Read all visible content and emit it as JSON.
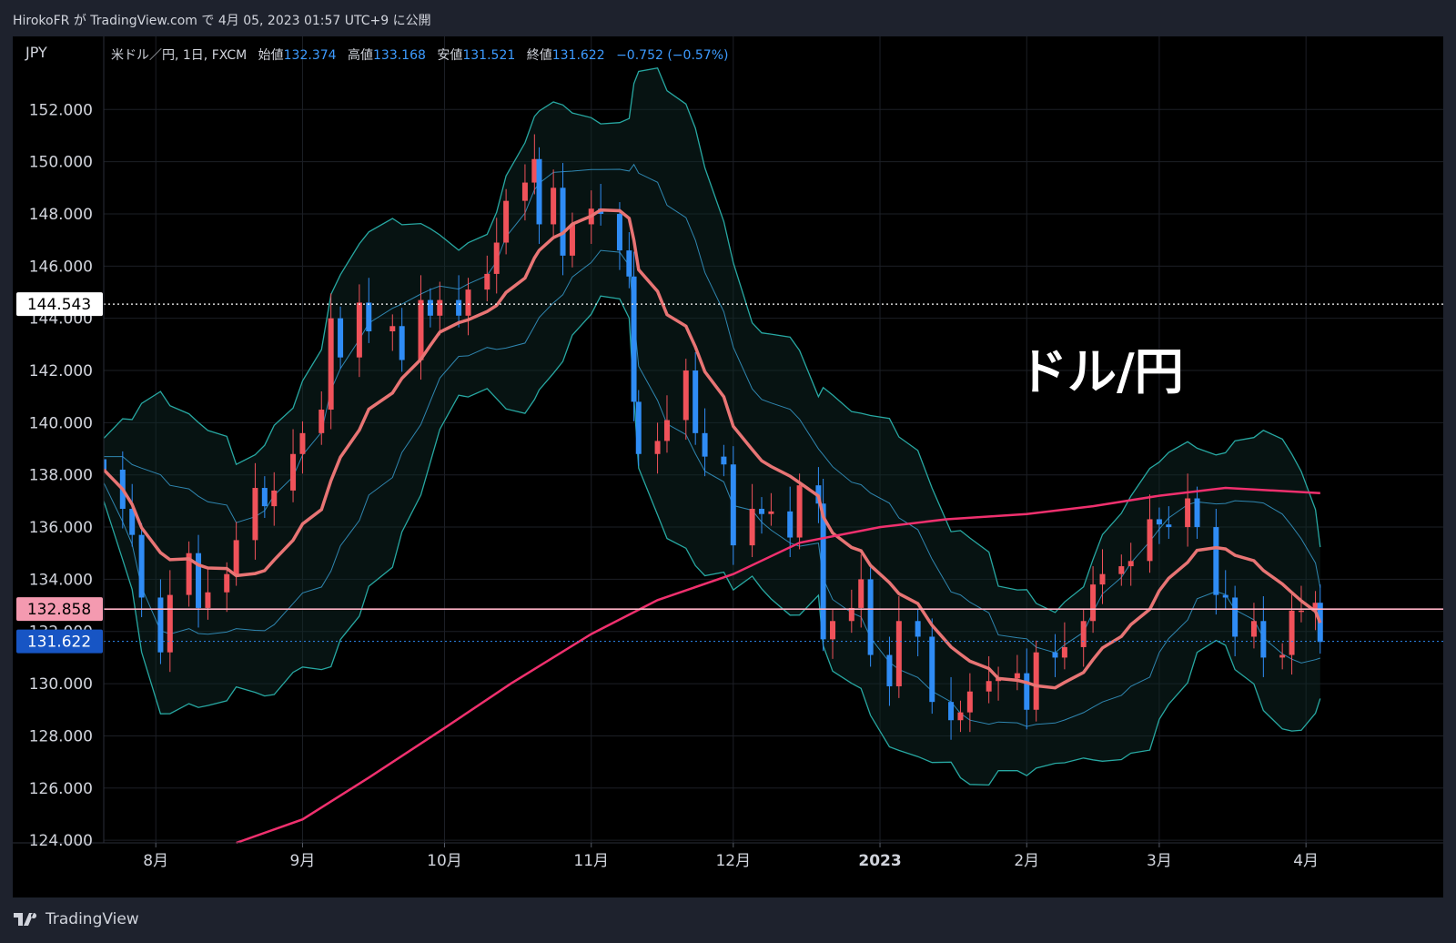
{
  "header": {
    "text": "HirokoFR が TradingView.com で 4月 05, 2023 01:57 UTC+9 に公開"
  },
  "footer": {
    "brand": "TradingView",
    "logo_icon": "tradingview-logo-icon"
  },
  "legend": {
    "symbol": "米ドル／円, 1日, FXCM",
    "open_label": "始値",
    "open": "132.374",
    "high_label": "高値",
    "high": "133.168",
    "low_label": "安値",
    "low": "131.521",
    "close_label": "終値",
    "close": "131.622",
    "change": "−0.752 (−0.57%)"
  },
  "currency": "JPY",
  "annotation": "ドル/円",
  "price_labels": {
    "dotted": "144.543",
    "horizontal": "132.858",
    "last": "131.622"
  },
  "colors": {
    "up": "#f0525a",
    "down": "#2f8cf5",
    "bb_outer": "#27a8a2",
    "bb_inner": "#2f86b0",
    "ma_mid": "#e87474",
    "ma_long": "#f0306e",
    "hline": "#ffb3c6",
    "background": "#000000"
  },
  "chart_data": {
    "type": "candlestick",
    "title": "",
    "y_ticks": [
      "152.000",
      "150.000",
      "148.000",
      "146.000",
      "144.000",
      "142.000",
      "140.000",
      "138.000",
      "136.000",
      "134.000",
      "132.000",
      "130.000",
      "128.000",
      "126.000",
      "124.000"
    ],
    "ylim": [
      123.9,
      154.8
    ],
    "x_ticks": [
      {
        "label": "8月",
        "date": "2022-08-01"
      },
      {
        "label": "9月",
        "date": "2022-09-01"
      },
      {
        "label": "10月",
        "date": "2022-10-01"
      },
      {
        "label": "11月",
        "date": "2022-11-01"
      },
      {
        "label": "12月",
        "date": "2022-12-01"
      },
      {
        "label": "2023",
        "date": "2023-01-01"
      },
      {
        "label": "2月",
        "date": "2023-02-01"
      },
      {
        "label": "3月",
        "date": "2023-03-01"
      },
      {
        "label": "4月",
        "date": "2023-04-01"
      }
    ],
    "xlim": [
      "2022-07-21",
      "2023-04-30"
    ],
    "grid": true,
    "close_series": [
      [
        "2022-07-21",
        138.2
      ],
      [
        "2022-07-25",
        136.7
      ],
      [
        "2022-07-27",
        135.7
      ],
      [
        "2022-07-29",
        133.3
      ],
      [
        "2022-08-02",
        131.2
      ],
      [
        "2022-08-04",
        133.4
      ],
      [
        "2022-08-08",
        135.0
      ],
      [
        "2022-08-10",
        132.9
      ],
      [
        "2022-08-12",
        133.5
      ],
      [
        "2022-08-16",
        134.2
      ],
      [
        "2022-08-18",
        135.5
      ],
      [
        "2022-08-22",
        137.5
      ],
      [
        "2022-08-24",
        136.8
      ],
      [
        "2022-08-26",
        137.4
      ],
      [
        "2022-08-30",
        138.8
      ],
      [
        "2022-09-01",
        139.6
      ],
      [
        "2022-09-05",
        140.5
      ],
      [
        "2022-09-07",
        144.0
      ],
      [
        "2022-09-09",
        142.5
      ],
      [
        "2022-09-13",
        144.6
      ],
      [
        "2022-09-15",
        143.5
      ],
      [
        "2022-09-20",
        143.7
      ],
      [
        "2022-09-22",
        142.4
      ],
      [
        "2022-09-26",
        144.7
      ],
      [
        "2022-09-28",
        144.1
      ],
      [
        "2022-09-30",
        144.7
      ],
      [
        "2022-10-04",
        144.1
      ],
      [
        "2022-10-06",
        145.1
      ],
      [
        "2022-10-10",
        145.7
      ],
      [
        "2022-10-12",
        146.9
      ],
      [
        "2022-10-14",
        148.5
      ],
      [
        "2022-10-18",
        149.2
      ],
      [
        "2022-10-20",
        150.1
      ],
      [
        "2022-10-21",
        147.6
      ],
      [
        "2022-10-24",
        149.0
      ],
      [
        "2022-10-26",
        146.4
      ],
      [
        "2022-10-28",
        147.6
      ],
      [
        "2022-11-01",
        148.2
      ],
      [
        "2022-11-03",
        148.0
      ],
      [
        "2022-11-07",
        146.6
      ],
      [
        "2022-11-09",
        145.6
      ],
      [
        "2022-11-10",
        140.8
      ],
      [
        "2022-11-11",
        138.8
      ],
      [
        "2022-11-15",
        139.3
      ],
      [
        "2022-11-17",
        140.1
      ],
      [
        "2022-11-21",
        142.0
      ],
      [
        "2022-11-23",
        139.6
      ],
      [
        "2022-11-25",
        138.7
      ],
      [
        "2022-11-29",
        138.4
      ],
      [
        "2022-12-01",
        135.3
      ],
      [
        "2022-12-05",
        136.7
      ],
      [
        "2022-12-07",
        136.5
      ],
      [
        "2022-12-09",
        136.6
      ],
      [
        "2022-12-13",
        135.6
      ],
      [
        "2022-12-15",
        137.6
      ],
      [
        "2022-12-19",
        136.9
      ],
      [
        "2022-12-20",
        131.7
      ],
      [
        "2022-12-22",
        132.4
      ],
      [
        "2022-12-26",
        132.9
      ],
      [
        "2022-12-28",
        134.0
      ],
      [
        "2022-12-30",
        131.1
      ],
      [
        "2023-01-03",
        129.9
      ],
      [
        "2023-01-05",
        132.4
      ],
      [
        "2023-01-09",
        131.8
      ],
      [
        "2023-01-12",
        129.3
      ],
      [
        "2023-01-16",
        128.6
      ],
      [
        "2023-01-18",
        128.9
      ],
      [
        "2023-01-20",
        129.7
      ],
      [
        "2023-01-24",
        130.1
      ],
      [
        "2023-01-26",
        130.2
      ],
      [
        "2023-01-30",
        130.4
      ],
      [
        "2023-02-01",
        129.0
      ],
      [
        "2023-02-03",
        131.2
      ],
      [
        "2023-02-07",
        131.0
      ],
      [
        "2023-02-09",
        131.4
      ],
      [
        "2023-02-13",
        132.4
      ],
      [
        "2023-02-15",
        133.8
      ],
      [
        "2023-02-17",
        134.2
      ],
      [
        "2023-02-21",
        134.5
      ],
      [
        "2023-02-23",
        134.7
      ],
      [
        "2023-02-27",
        136.3
      ],
      [
        "2023-03-01",
        136.1
      ],
      [
        "2023-03-03",
        136.0
      ],
      [
        "2023-03-07",
        137.1
      ],
      [
        "2023-03-09",
        136.0
      ],
      [
        "2023-03-13",
        133.4
      ],
      [
        "2023-03-15",
        133.3
      ],
      [
        "2023-03-17",
        131.8
      ],
      [
        "2023-03-21",
        132.4
      ],
      [
        "2023-03-23",
        131.0
      ],
      [
        "2023-03-27",
        131.1
      ],
      [
        "2023-03-29",
        132.8
      ],
      [
        "2023-03-31",
        132.8
      ],
      [
        "2023-04-03",
        133.1
      ],
      [
        "2023-04-04",
        131.6
      ]
    ],
    "series": [
      {
        "style": "candlestick",
        "values_are": "close_series"
      },
      {
        "name": "",
        "style": "line",
        "color": "#f0306e",
        "x": [
          "2022-08-18",
          "2022-09-01",
          "2022-09-15",
          "2022-10-01",
          "2022-10-15",
          "2022-11-01",
          "2022-11-15",
          "2022-12-01",
          "2022-12-15",
          "2023-01-01",
          "2023-01-15",
          "2023-02-01",
          "2023-02-15",
          "2023-03-01",
          "2023-03-15",
          "2023-04-04"
        ],
        "y": [
          123.9,
          124.8,
          126.4,
          128.3,
          130.0,
          131.9,
          133.2,
          134.2,
          135.4,
          136.0,
          136.3,
          136.5,
          136.8,
          137.2,
          137.5,
          137.3
        ]
      }
    ]
  }
}
